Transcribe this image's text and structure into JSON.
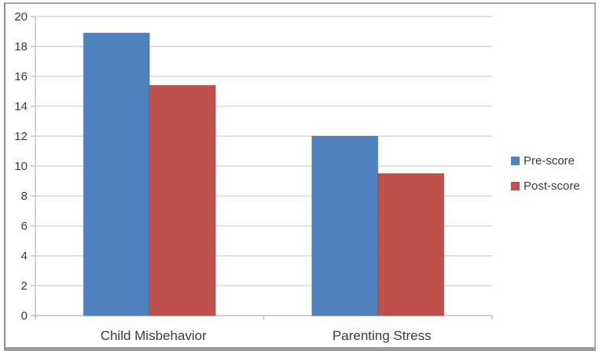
{
  "chart_data": {
    "type": "bar",
    "categories": [
      "Child Misbehavior",
      "Parenting Stress"
    ],
    "series": [
      {
        "name": "Pre-score",
        "color": "#4f81bd",
        "values": [
          18.9,
          12.0
        ]
      },
      {
        "name": "Post-score",
        "color": "#c0504d",
        "values": [
          15.4,
          9.5
        ]
      }
    ],
    "title": "",
    "xlabel": "",
    "ylabel": "",
    "ylim": [
      0,
      20
    ],
    "ytick_step": 2,
    "ytick_labels": [
      "0",
      "2",
      "4",
      "6",
      "8",
      "10",
      "12",
      "14",
      "16",
      "18",
      "20"
    ],
    "grid": true,
    "legend_position": "right"
  },
  "colors": {
    "gridline": "#dadada",
    "axis": "#c0c0c0",
    "tick": "#bdbdbd",
    "label_text": "#3b3b3b",
    "frame_border": "#a6a6a6",
    "background": "#ffffff"
  }
}
